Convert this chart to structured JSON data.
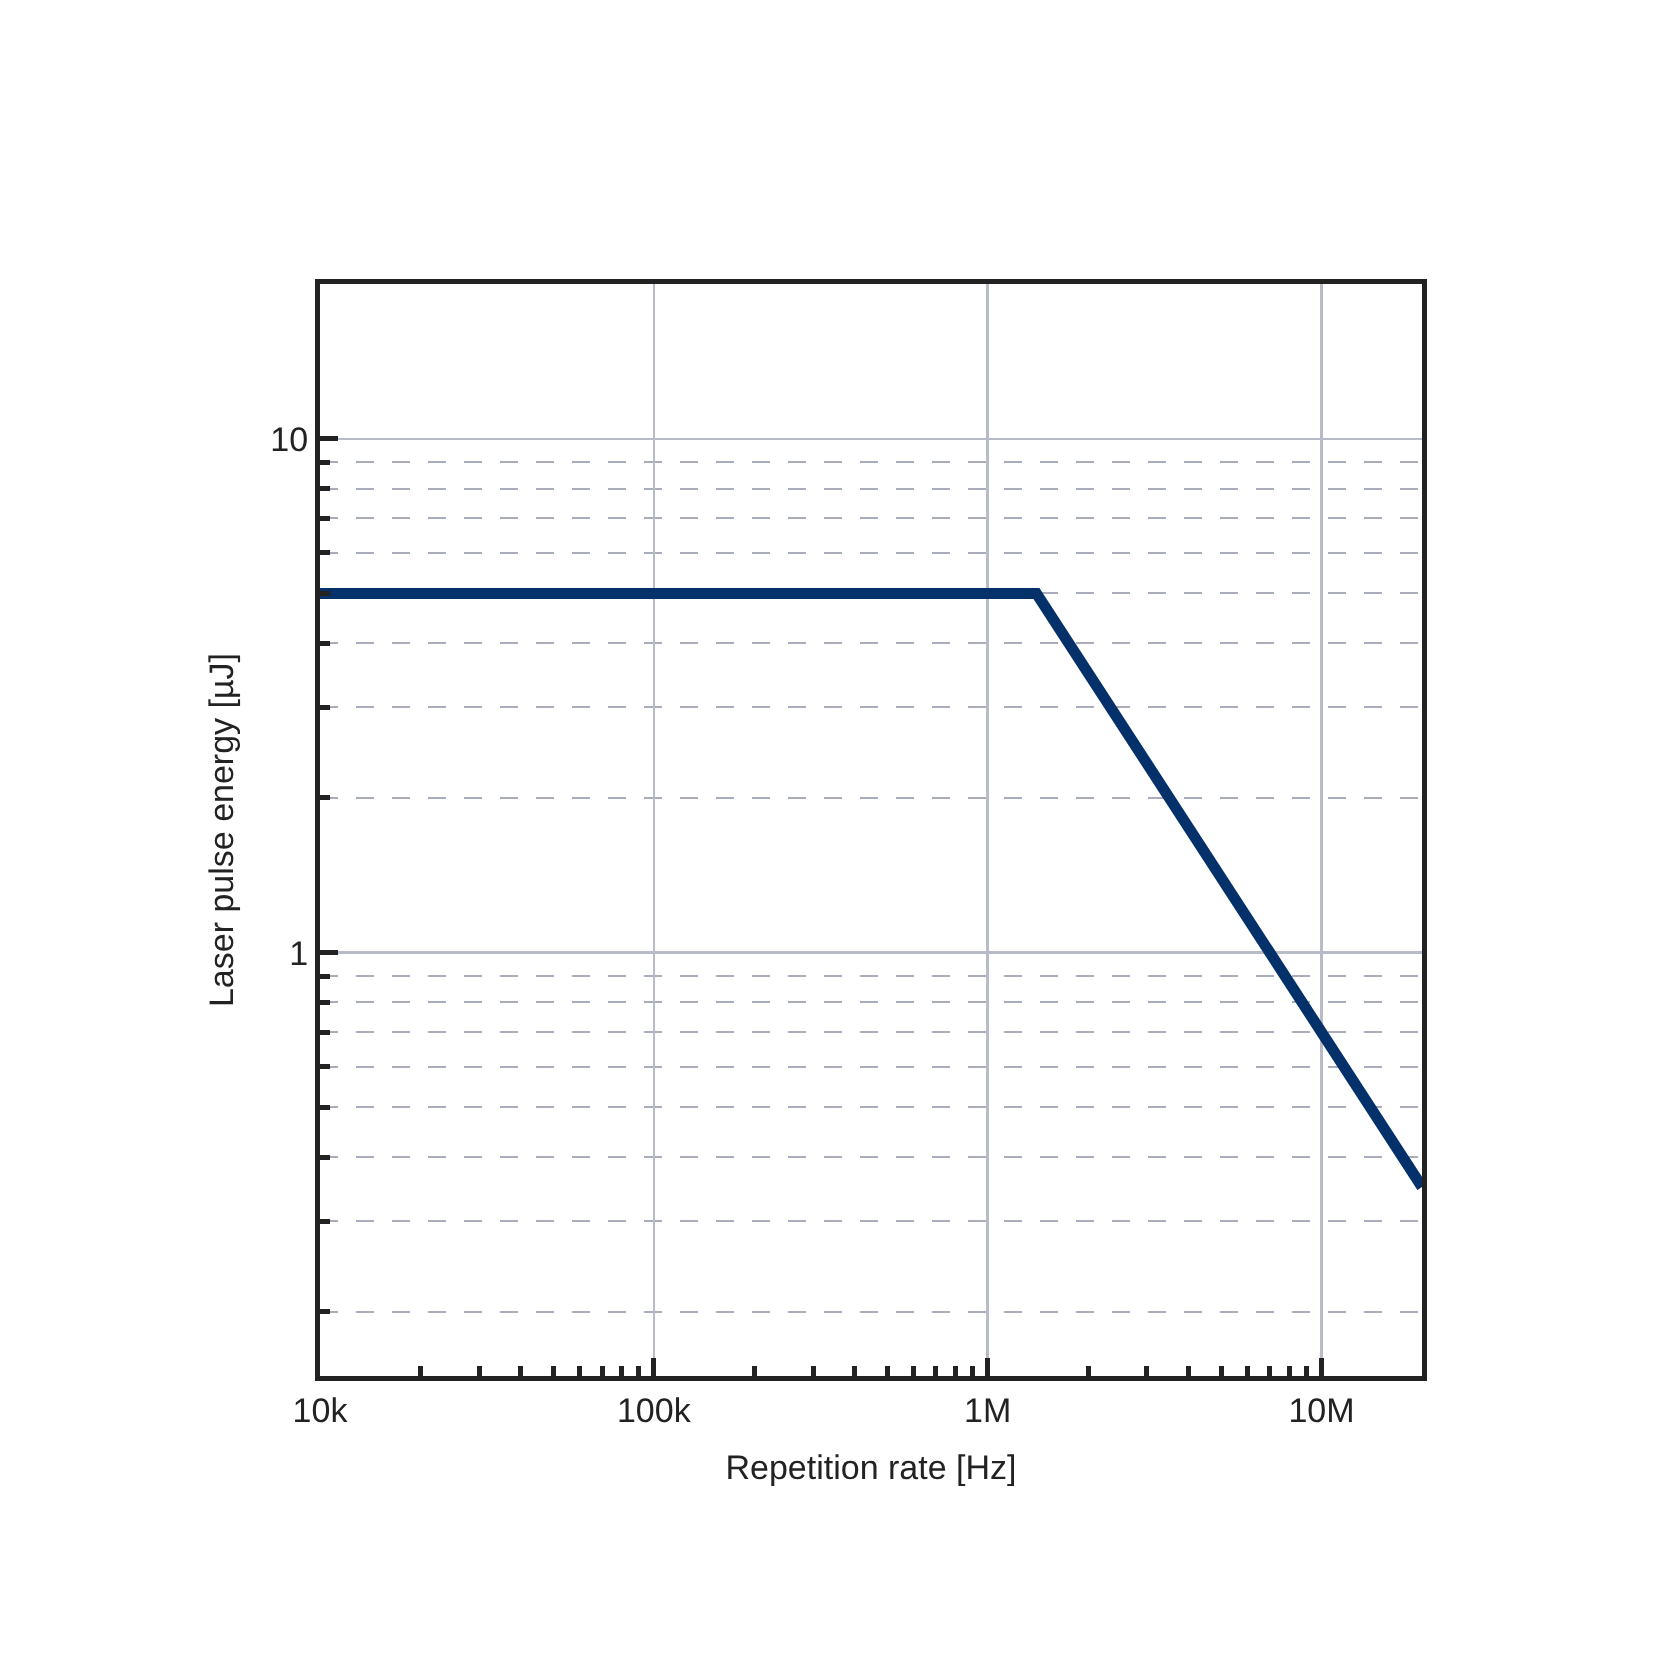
{
  "chart_data": {
    "type": "line",
    "xlabel": "Repetition rate [Hz]",
    "ylabel": "Laser pulse energy [µJ]",
    "log": "xy",
    "grid": true,
    "marker": "none",
    "line_style": "solid",
    "xlim": [
      10000,
      20000000
    ],
    "ylim": [
      0.15,
      20
    ],
    "xticks": [
      {
        "value": 10000,
        "label": "10k"
      },
      {
        "value": 20000,
        "label": null
      },
      {
        "value": 30000,
        "label": null
      },
      {
        "value": 40000,
        "label": null
      },
      {
        "value": 50000,
        "label": null
      },
      {
        "value": 60000,
        "label": null
      },
      {
        "value": 70000,
        "label": null
      },
      {
        "value": 80000,
        "label": null
      },
      {
        "value": 90000,
        "label": null
      },
      {
        "value": 100000,
        "label": "100k"
      },
      {
        "value": 200000,
        "label": null
      },
      {
        "value": 300000,
        "label": null
      },
      {
        "value": 400000,
        "label": null
      },
      {
        "value": 500000,
        "label": null
      },
      {
        "value": 600000,
        "label": null
      },
      {
        "value": 700000,
        "label": null
      },
      {
        "value": 800000,
        "label": null
      },
      {
        "value": 900000,
        "label": null
      },
      {
        "value": 1000000,
        "label": "1M"
      },
      {
        "value": 2000000,
        "label": null
      },
      {
        "value": 3000000,
        "label": null
      },
      {
        "value": 4000000,
        "label": null
      },
      {
        "value": 5000000,
        "label": null
      },
      {
        "value": 6000000,
        "label": null
      },
      {
        "value": 7000000,
        "label": null
      },
      {
        "value": 8000000,
        "label": null
      },
      {
        "value": 9000000,
        "label": null
      },
      {
        "value": 10000000,
        "label": "10M"
      }
    ],
    "yticks": [
      {
        "value": 0.2,
        "label": null
      },
      {
        "value": 0.3,
        "label": null
      },
      {
        "value": 0.4,
        "label": null
      },
      {
        "value": 0.5,
        "label": null
      },
      {
        "value": 0.6,
        "label": null
      },
      {
        "value": 0.7,
        "label": null
      },
      {
        "value": 0.8,
        "label": null
      },
      {
        "value": 0.9,
        "label": null
      },
      1,
      {
        "value": 2,
        "label": null
      },
      {
        "value": 3,
        "label": null
      },
      {
        "value": 4,
        "label": null
      },
      {
        "value": 5,
        "label": null
      },
      {
        "value": 6,
        "label": null
      },
      {
        "value": 7,
        "label": null
      },
      {
        "value": 8,
        "label": null
      },
      {
        "value": 9,
        "label": null
      },
      10
    ],
    "x": [
      10000,
      1400000,
      20000000
    ],
    "series": [
      {
        "color": "#05316a",
        "values": [
          5,
          5,
          0.35
        ]
      }
    ]
  }
}
